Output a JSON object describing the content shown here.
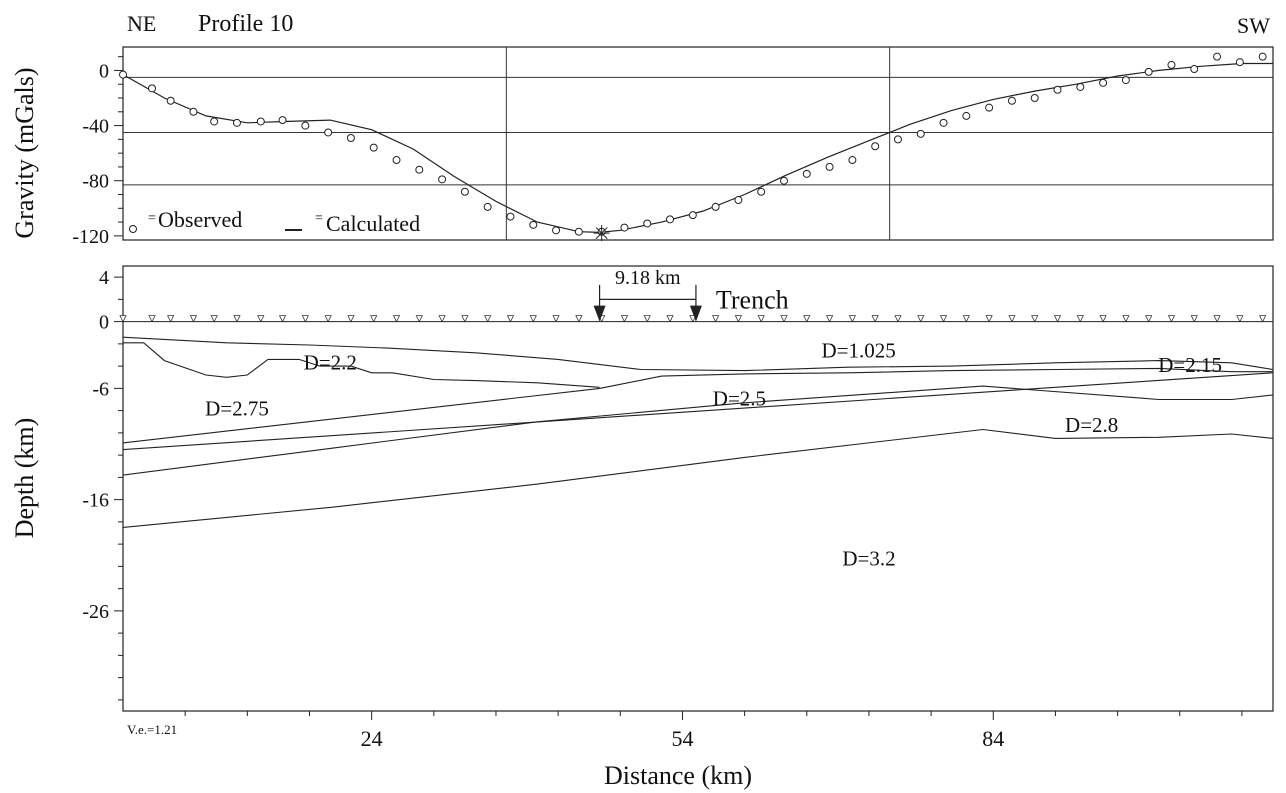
{
  "header": {
    "left_dir": "NE",
    "title": "Profile 10",
    "right_dir": "SW"
  },
  "footer": {
    "ve_note": "V.e.=1.21"
  },
  "chart_data": [
    {
      "type": "scatter",
      "panel": "gravity",
      "ylabel": "Gravity (mGals)",
      "y_ticks": [
        0,
        -40,
        -80,
        -120
      ],
      "ylim": [
        -123,
        17
      ],
      "xlim": [
        0,
        111
      ],
      "grid": true,
      "grid_x": [
        37,
        74
      ],
      "grid_y": [
        -5,
        -45,
        -83
      ],
      "legend": {
        "observed": "Observed",
        "calculated": "Calculated",
        "eq": "=",
        "placement": "bottom-left"
      },
      "series": [
        {
          "name": "Observed",
          "x": [
            0,
            2.8,
            4.6,
            6.8,
            8.8,
            11.0,
            13.3,
            15.4,
            17.6,
            19.8,
            22.0,
            24.2,
            26.4,
            28.6,
            30.8,
            33.0,
            35.2,
            37.4,
            39.6,
            41.8,
            44.0,
            46.2,
            48.4,
            50.6,
            52.8,
            55.0,
            57.2,
            59.4,
            61.6,
            63.8,
            66.0,
            68.2,
            70.4,
            72.6,
            74.8,
            77.0,
            79.2,
            81.4,
            83.6,
            85.8,
            88.0,
            90.2,
            92.4,
            94.6,
            96.8,
            99.0,
            101.2,
            103.4,
            105.6,
            107.8,
            110.0
          ],
          "y": [
            -3,
            -13,
            -22,
            -30,
            -37,
            -38,
            -37,
            -36,
            -40,
            -45,
            -49,
            -56,
            -65,
            -72,
            -79,
            -88,
            -99,
            -106,
            -112,
            -116,
            -117,
            -117,
            -114,
            -111,
            -108,
            -105,
            -99,
            -94,
            -88,
            -80,
            -75,
            -70,
            -65,
            -55,
            -50,
            -46,
            -38,
            -33,
            -27,
            -22,
            -20,
            -14,
            -12,
            -9,
            -7,
            -1,
            4,
            1,
            10,
            6,
            10
          ]
        },
        {
          "name": "Calculated",
          "x": [
            0,
            4,
            8,
            12,
            16,
            20,
            24,
            28,
            32,
            36,
            40,
            44,
            46,
            48,
            52,
            56,
            60,
            64,
            68,
            72,
            76,
            80,
            84,
            88,
            92,
            96,
            100,
            104,
            108,
            111
          ],
          "y": [
            -3,
            -20,
            -33,
            -38,
            -37,
            -36,
            -43,
            -57,
            -77,
            -95,
            -110,
            -117,
            -117.5,
            -116,
            -110,
            -102,
            -90,
            -76,
            -63,
            -51,
            -39,
            -29,
            -21,
            -15,
            -10,
            -4,
            0,
            3,
            5,
            5
          ]
        }
      ],
      "markers": [
        {
          "name": "station-star",
          "x": 46.2,
          "y": -118
        }
      ]
    },
    {
      "type": "line",
      "panel": "depth-model",
      "ylabel": "Depth (km)",
      "xlabel": "Distance (km)",
      "y_ticks": [
        4,
        0,
        -6,
        -16,
        -26
      ],
      "x_ticks": [
        24,
        54,
        84
      ],
      "ylim": [
        -35,
        5
      ],
      "xlim": [
        0,
        111
      ],
      "surface_y": 0,
      "trench": {
        "label": "Trench",
        "distance_label": "9.18 km",
        "x1": 46.0,
        "x2": 55.3
      },
      "bodies": [
        {
          "label": "D=2.2",
          "x": 20.0,
          "y": -3.6
        },
        {
          "label": "D=1.025",
          "x": 71.0,
          "y": -2.5
        },
        {
          "label": "D=2.15",
          "x": 103.0,
          "y": -3.8
        },
        {
          "label": "D=2.75",
          "x": 11.0,
          "y": -7.7
        },
        {
          "label": "D=2.5",
          "x": 59.5,
          "y": -6.8
        },
        {
          "label": "D=2.8",
          "x": 93.5,
          "y": -9.2
        },
        {
          "label": "D=3.2",
          "x": 72.0,
          "y": -21.2
        }
      ],
      "boundaries": [
        {
          "x": [
            0,
            4,
            10,
            18,
            26,
            34,
            42,
            50,
            60,
            70,
            80,
            90,
            100,
            107,
            111
          ],
          "y": [
            -1.4,
            -1.6,
            -1.9,
            -2.1,
            -2.4,
            -2.8,
            -3.4,
            -4.3,
            -4.4,
            -4.1,
            -4.0,
            -3.7,
            -3.5,
            -3.7,
            -4.3
          ]
        },
        {
          "x": [
            0,
            2,
            4,
            8,
            10,
            12,
            14,
            17,
            19,
            22,
            24,
            26,
            30,
            34,
            40,
            46
          ],
          "y": [
            -1.9,
            -1.9,
            -3.5,
            -4.8,
            -5.0,
            -4.8,
            -3.4,
            -3.4,
            -4.0,
            -4.0,
            -4.6,
            -4.6,
            -5.2,
            -5.3,
            -5.5,
            -5.9
          ]
        },
        {
          "x": [
            0,
            46,
            52,
            60,
            70,
            80,
            90,
            100,
            107,
            111
          ],
          "y": [
            -10.9,
            -6.0,
            -4.9,
            -4.7,
            -4.6,
            -4.4,
            -4.3,
            -4.2,
            -4.5,
            -4.5
          ]
        },
        {
          "x": [
            0,
            111
          ],
          "y": [
            -11.5,
            -4.6
          ]
        },
        {
          "x": [
            0,
            20,
            40,
            60,
            83,
            100,
            107,
            111
          ],
          "y": [
            -13.8,
            -11.4,
            -9.0,
            -7.3,
            -5.8,
            -7.0,
            -7.0,
            -6.6
          ]
        },
        {
          "x": [
            0,
            20,
            40,
            60,
            83,
            90,
            100,
            107,
            111
          ],
          "y": [
            -18.5,
            -16.7,
            -14.6,
            -12.2,
            -9.7,
            -10.5,
            -10.4,
            -10.1,
            -10.5
          ]
        }
      ]
    }
  ]
}
